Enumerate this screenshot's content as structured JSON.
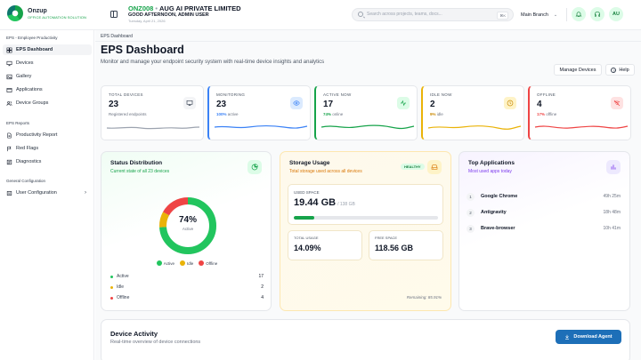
{
  "brand": {
    "name": "Onzup",
    "tagline": "OFFICE AUTOMATION SOLUTION"
  },
  "header": {
    "company_code": "ONZ008",
    "company_name": "AUG AI PRIVATE LIMITED",
    "greeting": "GOOD AFTERNOON, ADMIN USER",
    "date": "Tuesday, April 21, 2026",
    "search_placeholder": "Search across projects, teams, docs...",
    "search_shortcut": "⌘K",
    "branch": "Main Branch",
    "avatar_initials": "AU"
  },
  "sidebar": {
    "sections": [
      {
        "title": "EPS - Employee Productivity",
        "items": [
          {
            "label": "EPS Dashboard",
            "icon": "grid-icon",
            "active": true
          },
          {
            "label": "Devices",
            "icon": "monitor-icon"
          },
          {
            "label": "Gallery",
            "icon": "image-icon"
          },
          {
            "label": "Applications",
            "icon": "apps-icon"
          },
          {
            "label": "Device Groups",
            "icon": "users-icon"
          }
        ]
      },
      {
        "title": "EPS Reports",
        "items": [
          {
            "label": "Productivity Report",
            "icon": "file-icon"
          },
          {
            "label": "Red Flags",
            "icon": "flag-icon"
          },
          {
            "label": "Diagnostics",
            "icon": "list-icon"
          }
        ]
      },
      {
        "title": "General Configuration",
        "items": [
          {
            "label": "User Configuration",
            "icon": "user-icon",
            "arrow": "›"
          }
        ]
      }
    ]
  },
  "page": {
    "breadcrumb": "EPS Dashboard",
    "title": "EPS Dashboard",
    "description": "Monitor and manage your endpoint security system with real-time device insights and analytics",
    "manage_button": "Manage Devices",
    "help_button": "Help"
  },
  "stats": [
    {
      "label": "TOTAL DEVICES",
      "value": "23",
      "sub_value": "",
      "sub_text": "Registered endpoints",
      "color": "#6b7280",
      "icon": "monitor-icon"
    },
    {
      "label": "MONITORING",
      "value": "23",
      "sub_value": "100%",
      "sub_text": "active",
      "color": "#3b82f6",
      "icon": "eye-icon"
    },
    {
      "label": "ACTIVE NOW",
      "value": "17",
      "sub_value": "74%",
      "sub_text": "online",
      "color": "#16a34a",
      "icon": "activity-icon"
    },
    {
      "label": "IDLE NOW",
      "value": "2",
      "sub_value": "9%",
      "sub_text": "idle",
      "color": "#eab308",
      "icon": "clock-icon"
    },
    {
      "label": "OFFLINE",
      "value": "4",
      "sub_value": "17%",
      "sub_text": "offline",
      "color": "#ef4444",
      "icon": "wifi-off-icon"
    }
  ],
  "status": {
    "title": "Status Distribution",
    "subtitle": "Current state of all 23 devices",
    "percent": "74%",
    "center_label": "Active",
    "shares": {
      "active": 0.74,
      "idle": 0.09,
      "offline": 0.17
    },
    "legend": [
      "Active",
      "Idle",
      "Offline"
    ],
    "rows": [
      {
        "label": "Active",
        "count": "17",
        "color": "#22c55e"
      },
      {
        "label": "Idle",
        "count": "2",
        "color": "#eab308"
      },
      {
        "label": "Offline",
        "count": "4",
        "color": "#ef4444"
      }
    ]
  },
  "storage": {
    "title": "Storage Usage",
    "subtitle": "Total storage used across all devices",
    "badge": "HEALTHY",
    "used_label": "USED SPACE",
    "used_value": "19.44 GB",
    "total_value": "/ 138 GB",
    "used_fraction": 0.1409,
    "total_usage_label": "TOTAL USAGE",
    "total_usage_value": "14.09%",
    "free_label": "FREE SPACE",
    "free_value": "118.56 GB",
    "remaining": "Remaining: 85.91%"
  },
  "apps": {
    "title": "Top Applications",
    "subtitle": "Most used apps today",
    "items": [
      {
        "rank": "1",
        "name": "Google Chrome",
        "time": "49h 25m"
      },
      {
        "rank": "2",
        "name": "Antigravity",
        "time": "18h 48m"
      },
      {
        "rank": "3",
        "name": "Brave-browser",
        "time": "10h 41m"
      }
    ]
  },
  "activity": {
    "title": "Device Activity",
    "subtitle": "Real-time overview of device connections",
    "button": "Download Agent"
  }
}
